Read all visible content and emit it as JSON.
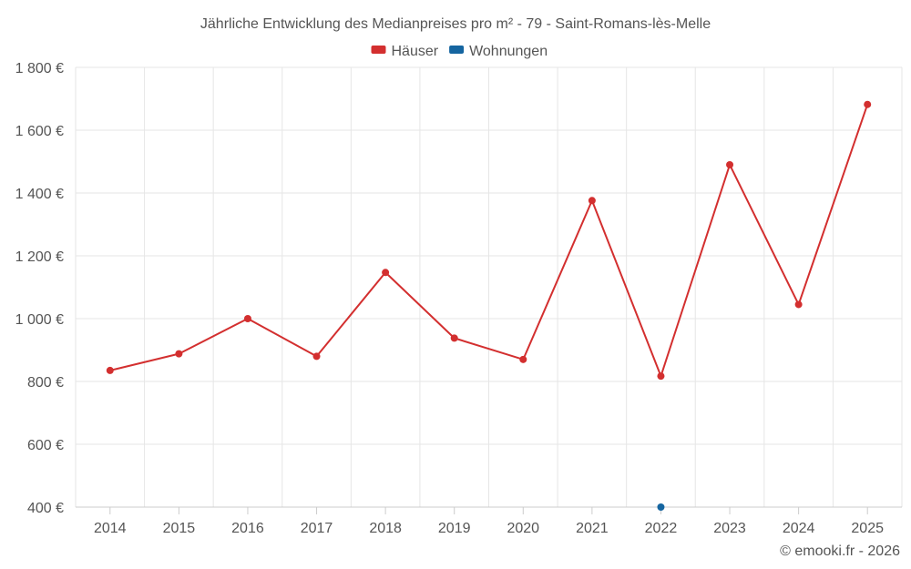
{
  "chart_data": {
    "type": "line",
    "title": "Jährliche Entwicklung des Medianpreises pro m² - 79 - Saint-Romans-lès-Melle",
    "categories": [
      "2014",
      "2015",
      "2016",
      "2017",
      "2018",
      "2019",
      "2020",
      "2021",
      "2022",
      "2023",
      "2024",
      "2025"
    ],
    "series": [
      {
        "name": "Häuser",
        "color": "#d32f2f",
        "values": [
          835,
          888,
          1000,
          880,
          1147,
          938,
          870,
          1376,
          817,
          1490,
          1045,
          1682
        ]
      },
      {
        "name": "Wohnungen",
        "color": "#1565a0",
        "values": [
          null,
          null,
          null,
          null,
          null,
          null,
          null,
          null,
          400,
          null,
          null,
          null
        ]
      }
    ],
    "ylim": [
      400,
      1800
    ],
    "yticks": [
      400,
      600,
      800,
      1000,
      1200,
      1400,
      1600,
      1800
    ],
    "ytick_labels": [
      "400 €",
      "600 €",
      "800 €",
      "1 000 €",
      "1 200 €",
      "1 400 €",
      "1 600 €",
      "1 800 €"
    ],
    "xlabel": "",
    "ylabel": "",
    "grid": true,
    "legend": "top-center"
  },
  "credit": "© emooki.fr - 2026"
}
